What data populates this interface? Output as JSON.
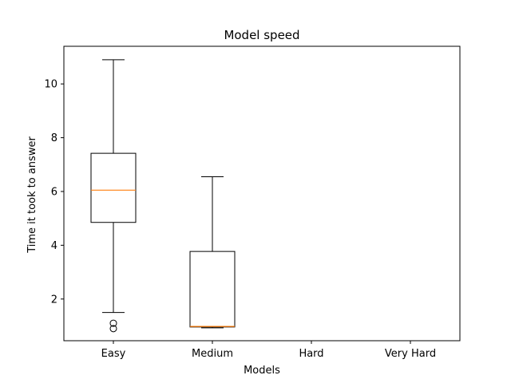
{
  "chart_data": {
    "type": "box",
    "title": "Model speed",
    "xlabel": "Models",
    "ylabel": "Time it took to answer",
    "categories": [
      "Easy",
      "Medium",
      "Hard",
      "Very Hard"
    ],
    "ylim": [
      0.45,
      11.4
    ],
    "yticks": [
      2,
      4,
      6,
      8,
      10
    ],
    "grid": false,
    "boxes": [
      {
        "category": "Easy",
        "whisker_low": 1.5,
        "q1": 4.85,
        "median": 6.05,
        "q3": 7.42,
        "whisker_high": 10.9,
        "outliers": [
          0.9,
          1.1
        ]
      },
      {
        "category": "Medium",
        "whisker_low": 0.93,
        "q1": 0.96,
        "median": 0.98,
        "q3": 3.77,
        "whisker_high": 6.55,
        "outliers": []
      },
      {
        "category": "Hard",
        "empty": true
      },
      {
        "category": "Very Hard",
        "empty": true
      }
    ],
    "colors": {
      "box": "#000000",
      "median": "#ff7f0e"
    }
  }
}
